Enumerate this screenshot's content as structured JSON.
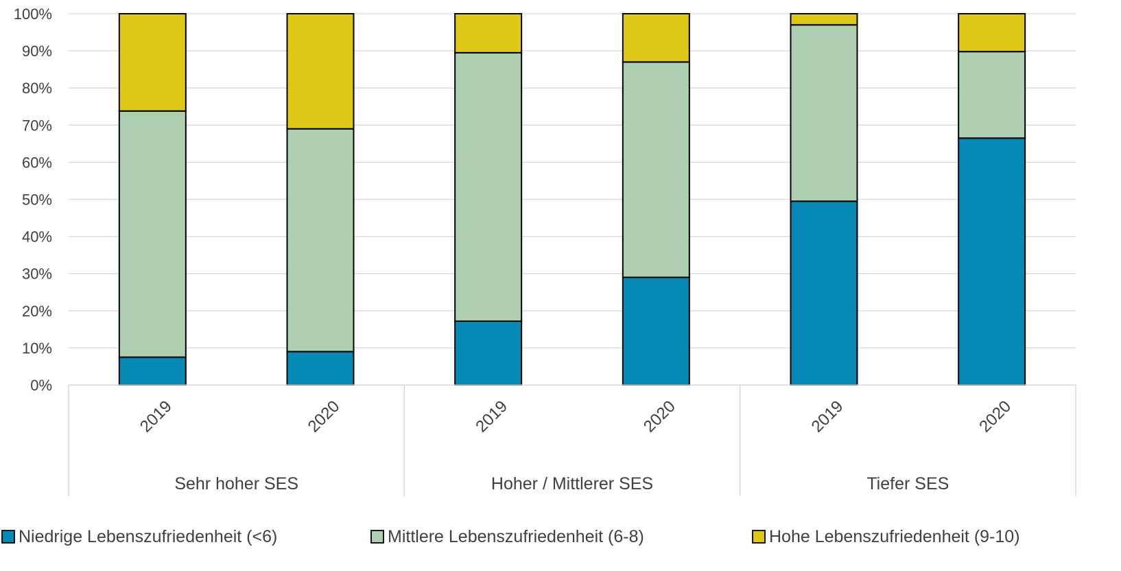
{
  "chart_data": {
    "type": "bar",
    "stacked": true,
    "percent": true,
    "groups": [
      {
        "name": "Sehr hoher SES",
        "categories": [
          "2019",
          "2020"
        ]
      },
      {
        "name": "Hoher / Mittlerer SES",
        "categories": [
          "2019",
          "2020"
        ]
      },
      {
        "name": "Tiefer SES",
        "categories": [
          "2019",
          "2020"
        ]
      }
    ],
    "series": [
      {
        "name": "Niedrige Lebenszufriedenheit (<6)",
        "color": "#0689B4",
        "values": [
          7.5,
          9.0,
          17.2,
          29.0,
          49.5,
          66.5
        ]
      },
      {
        "name": "Mittlere Lebenszufriedenheit (6-8)",
        "color": "#AFCFB1",
        "values": [
          66.3,
          60.0,
          72.3,
          58.0,
          47.5,
          23.3
        ]
      },
      {
        "name": "Hohe Lebenszufriedenheit (9-10)",
        "color": "#DEC817",
        "values": [
          26.2,
          31.0,
          10.5,
          13.0,
          3.0,
          10.2
        ]
      }
    ],
    "yticks": [
      "0%",
      "10%",
      "20%",
      "30%",
      "40%",
      "50%",
      "60%",
      "70%",
      "80%",
      "90%",
      "100%"
    ],
    "ylim": [
      0,
      100
    ],
    "grid": true,
    "legend_position": "bottom"
  }
}
